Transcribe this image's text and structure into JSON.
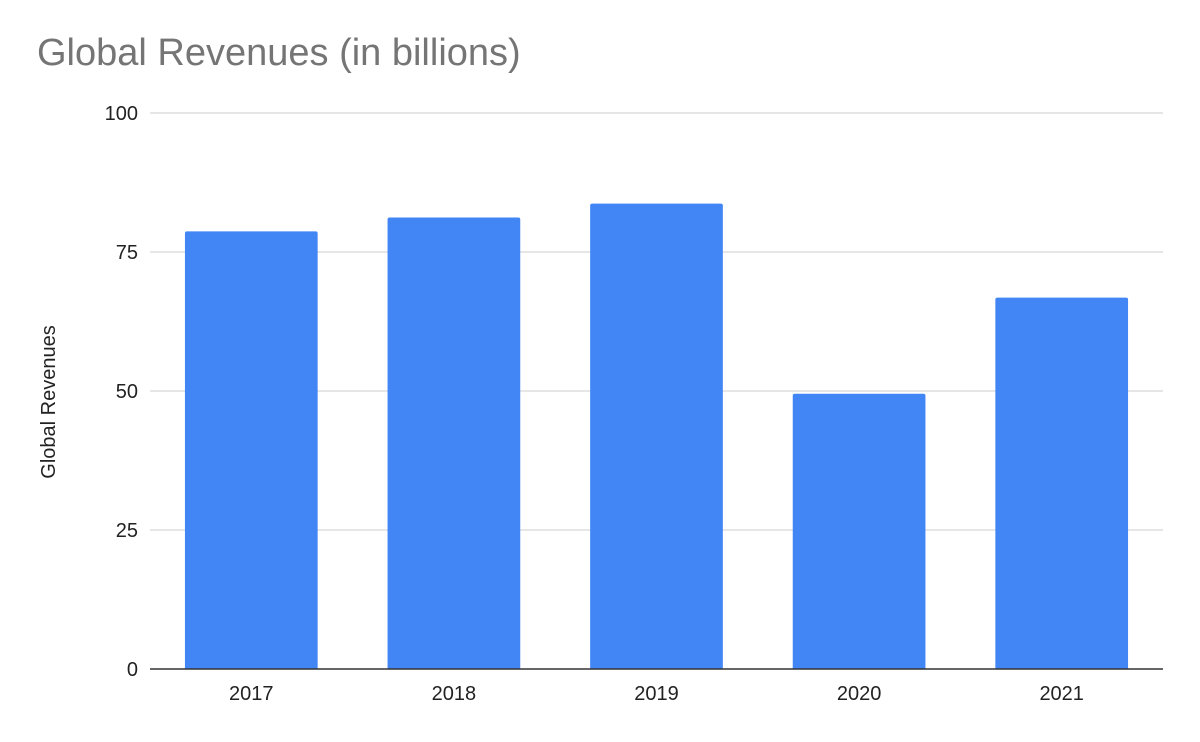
{
  "chart_data": {
    "type": "bar",
    "title": "Global Revenues (in billions)",
    "xlabel": "",
    "ylabel": "Global Revenues",
    "categories": [
      "2017",
      "2018",
      "2019",
      "2020",
      "2021"
    ],
    "series": [
      {
        "values": [
          78.7,
          81.2,
          83.7,
          49.5,
          66.8
        ]
      }
    ],
    "ylim": [
      0,
      100
    ],
    "yticks": [
      0,
      25,
      50,
      75,
      100
    ],
    "grid": true,
    "legend": "none",
    "colors": {
      "bar": "#4285F4",
      "grid": "#cccccc",
      "baseline": "#333333",
      "title": "#757575",
      "text": "#222222"
    }
  }
}
